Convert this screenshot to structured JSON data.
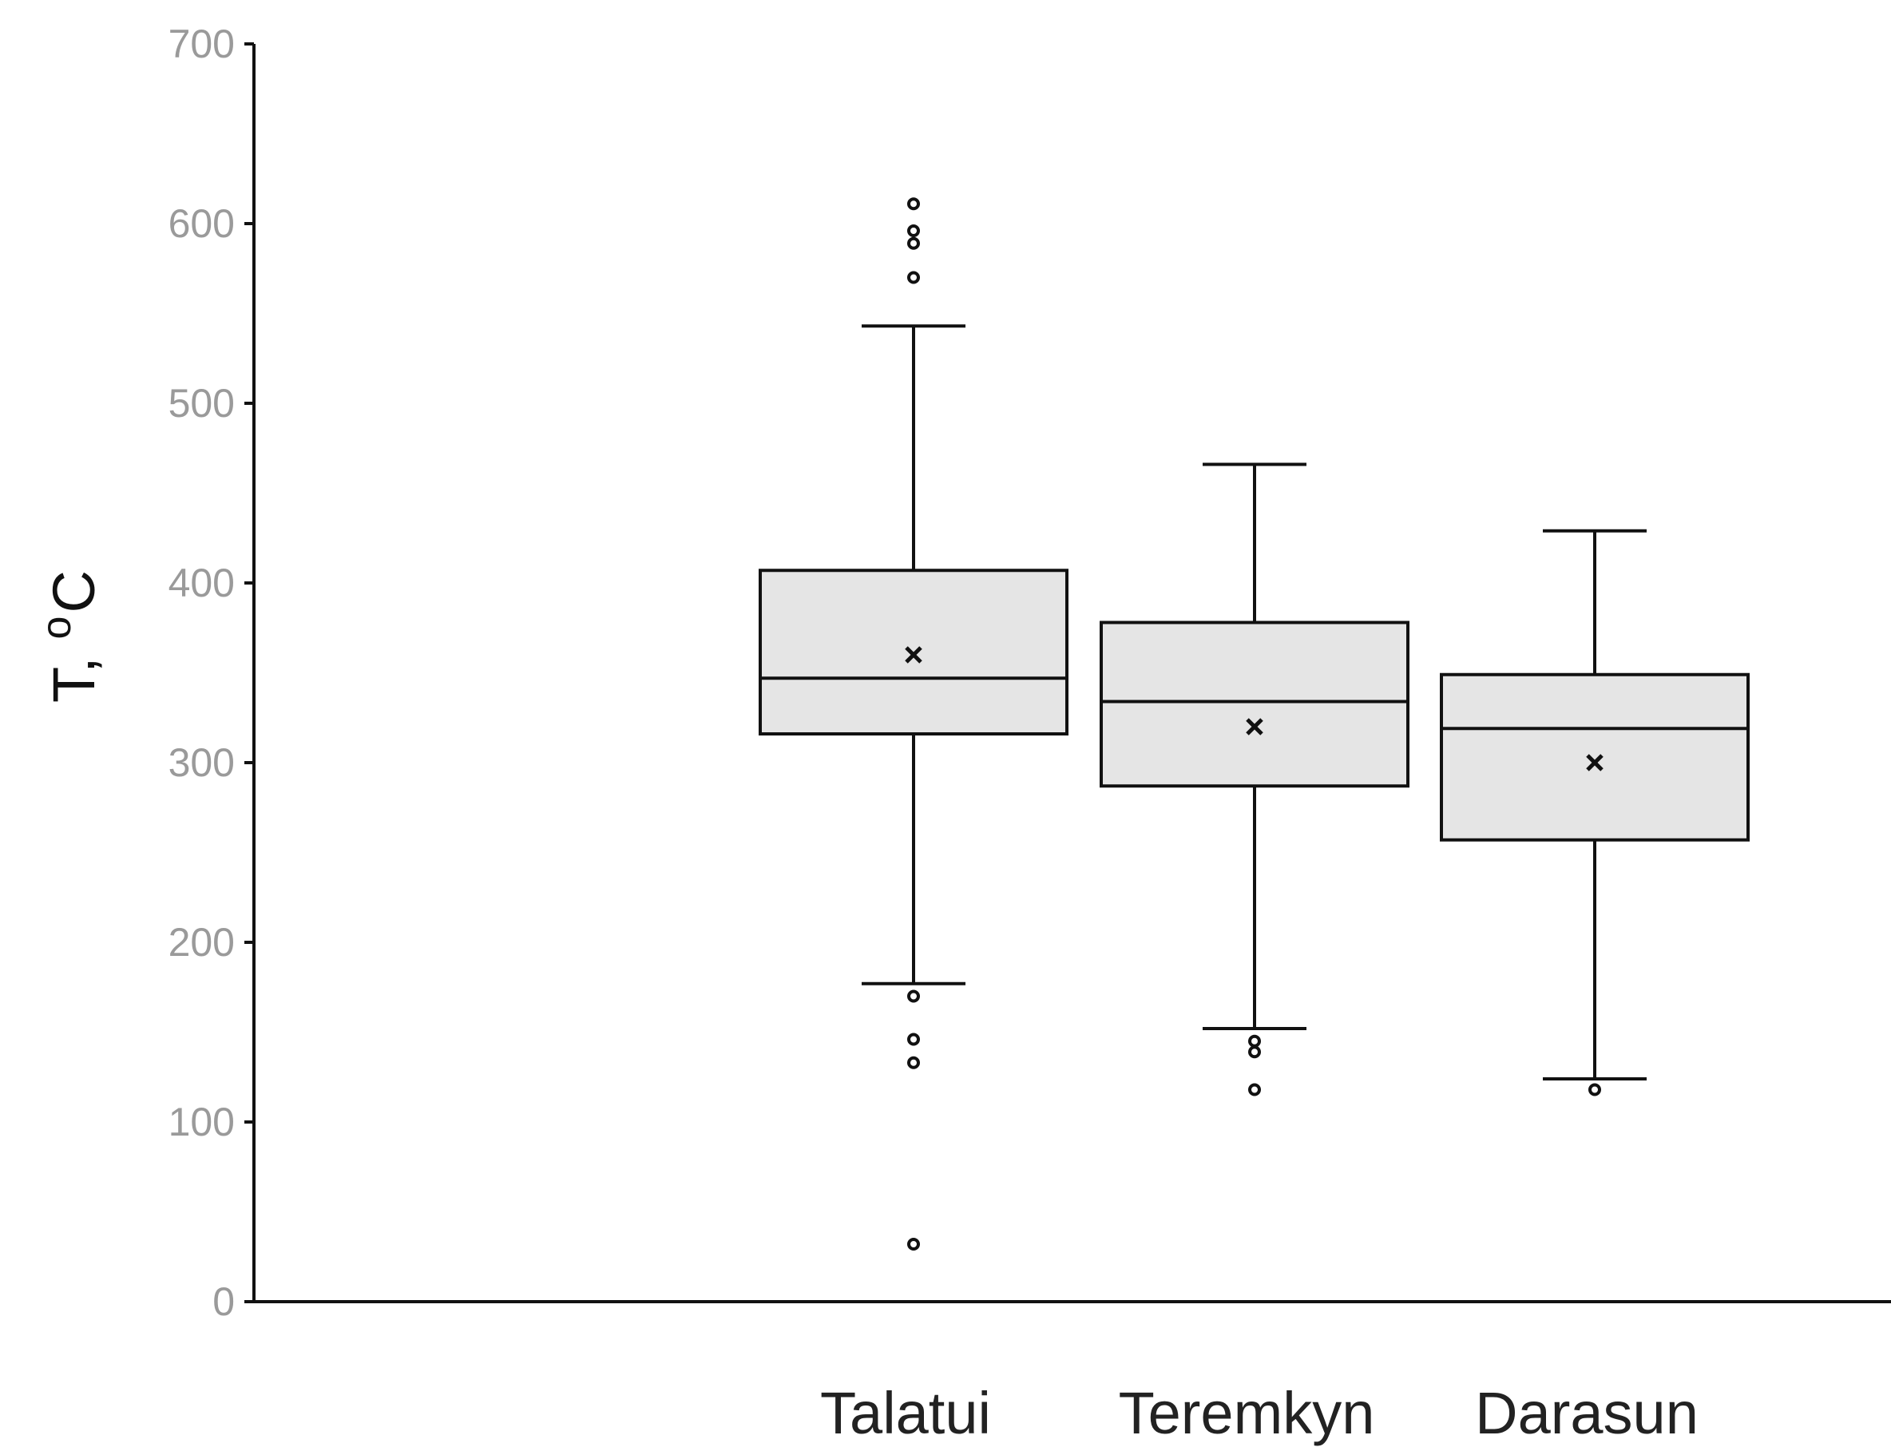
{
  "chart_data": {
    "type": "box",
    "ylabel": "T,",
    "ylabel_superscript": "o",
    "ylabel_unit": "C",
    "ylim": [
      0,
      700
    ],
    "yticks": [
      "0",
      "100",
      "200",
      "300",
      "400",
      "500",
      "600",
      "700"
    ],
    "categories": [
      "Talatui",
      "Teremkyn",
      "Darasun"
    ],
    "boxes": [
      {
        "name": "Talatui",
        "whisker_low": 177,
        "q1": 316,
        "median": 347,
        "q3": 407,
        "whisker_high": 543,
        "mean": 360,
        "outliers": [
          611,
          596,
          589,
          570,
          170,
          146,
          133,
          32
        ]
      },
      {
        "name": "Teremkyn",
        "whisker_low": 152,
        "q1": 287,
        "median": 334,
        "q3": 378,
        "whisker_high": 466,
        "mean": 320,
        "outliers": [
          145,
          139,
          118
        ]
      },
      {
        "name": "Darasun",
        "whisker_low": 124,
        "q1": 257,
        "median": 319,
        "q3": 349,
        "whisker_high": 429,
        "mean": 300,
        "outliers": [
          118
        ]
      }
    ],
    "colors": {
      "box_fill": "#e5e5e5",
      "stroke": "#111111",
      "tick_text": "#9a9a9a"
    }
  }
}
